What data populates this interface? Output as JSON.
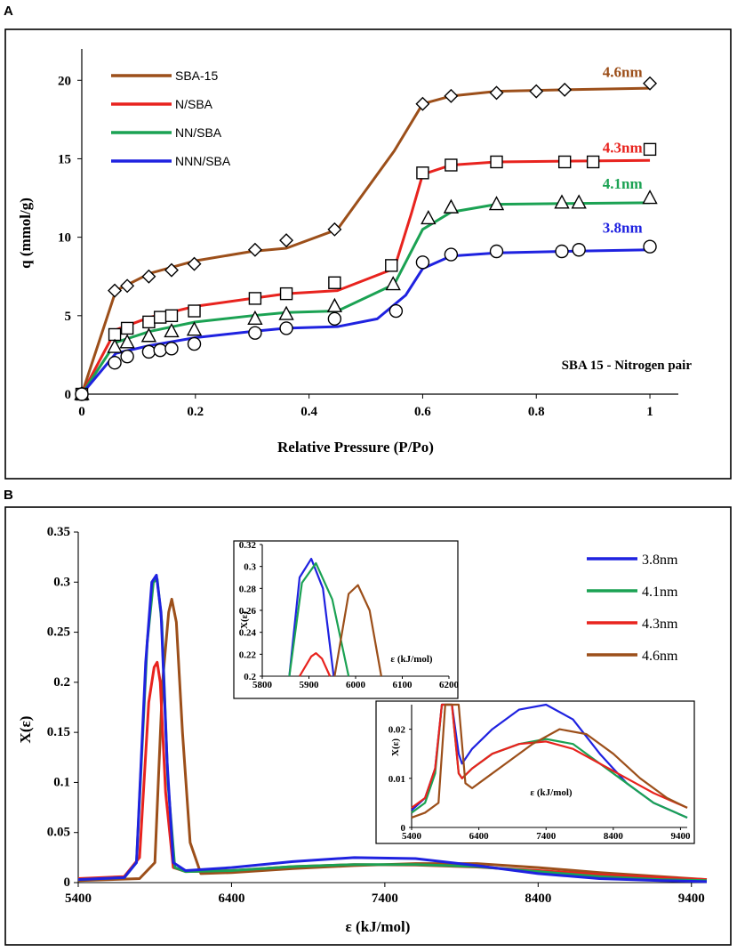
{
  "chart_data": [
    {
      "panel": "A",
      "type": "line",
      "title": "",
      "xlabel": "Relative Pressure (P/Po)",
      "ylabel": "q (mmol/g)",
      "xlim": [
        0,
        1.05
      ],
      "ylim": [
        0,
        22
      ],
      "xticks": [
        0,
        0.2,
        0.4,
        0.6,
        0.8,
        1
      ],
      "xtick_labels": [
        "0",
        "0.2",
        "0.4",
        "0.6",
        "0.8",
        "1"
      ],
      "yticks": [
        0,
        5,
        10,
        15,
        20
      ],
      "ytick_labels": [
        "0",
        "5",
        "10",
        "15",
        "20"
      ],
      "annotation": "SBA 15 - Nitrogen pair",
      "series": [
        {
          "name": "SBA-15",
          "label": "4.6nm",
          "label_x": 0.99,
          "label_y": 20.2,
          "color": "#9C4F1A",
          "marker": "diamond",
          "line": {
            "x": [
              0,
              0.06,
              0.12,
              0.2,
              0.3,
              0.36,
              0.45,
              0.55,
              0.6,
              0.65,
              0.73,
              0.85,
              1.0
            ],
            "y": [
              0,
              6.6,
              7.7,
              8.5,
              9.1,
              9.3,
              10.5,
              15.5,
              18.5,
              19.0,
              19.3,
              19.4,
              19.5
            ]
          },
          "points": {
            "x": [
              0,
              0.058,
              0.08,
              0.118,
              0.158,
              0.198,
              0.305,
              0.36,
              0.445,
              0.6,
              0.65,
              0.73,
              0.8,
              0.85,
              1.0
            ],
            "y": [
              0,
              6.6,
              6.9,
              7.5,
              7.9,
              8.3,
              9.2,
              9.8,
              10.5,
              18.5,
              19.0,
              19.2,
              19.3,
              19.4,
              19.8
            ]
          }
        },
        {
          "name": "N/SBA",
          "label": "4.3nm",
          "label_x": 0.99,
          "label_y": 15.4,
          "color": "#E8231E",
          "marker": "square",
          "line": {
            "x": [
              0,
              0.06,
              0.12,
              0.2,
              0.3,
              0.36,
              0.45,
              0.55,
              0.58,
              0.6,
              0.65,
              0.73,
              0.85,
              1.0
            ],
            "y": [
              0,
              4.1,
              4.9,
              5.6,
              6.1,
              6.4,
              6.6,
              8.0,
              11.5,
              14.0,
              14.6,
              14.8,
              14.85,
              14.9
            ]
          },
          "points": {
            "x": [
              0,
              0.058,
              0.08,
              0.118,
              0.138,
              0.158,
              0.198,
              0.305,
              0.36,
              0.445,
              0.545,
              0.6,
              0.65,
              0.73,
              0.85,
              0.9,
              1.0
            ],
            "y": [
              0,
              3.8,
              4.2,
              4.6,
              4.9,
              5.0,
              5.3,
              6.1,
              6.4,
              7.1,
              8.2,
              14.1,
              14.6,
              14.8,
              14.8,
              14.8,
              15.6
            ]
          }
        },
        {
          "name": "NN/SBA",
          "label": "4.1nm",
          "label_x": 0.99,
          "label_y": 13.1,
          "color": "#1BA253",
          "marker": "triangle",
          "line": {
            "x": [
              0,
              0.06,
              0.12,
              0.2,
              0.3,
              0.36,
              0.45,
              0.55,
              0.6,
              0.65,
              0.73,
              0.85,
              1.0
            ],
            "y": [
              0,
              3.3,
              4.0,
              4.6,
              5.0,
              5.2,
              5.3,
              7.0,
              10.5,
              11.6,
              12.1,
              12.15,
              12.2
            ]
          },
          "points": {
            "x": [
              0,
              0.058,
              0.08,
              0.118,
              0.158,
              0.198,
              0.305,
              0.36,
              0.445,
              0.548,
              0.61,
              0.65,
              0.73,
              0.845,
              0.875,
              1.0
            ],
            "y": [
              0,
              3.0,
              3.3,
              3.7,
              4.0,
              4.1,
              4.8,
              5.1,
              5.6,
              7.0,
              11.2,
              11.9,
              12.1,
              12.2,
              12.2,
              12.5
            ]
          }
        },
        {
          "name": "NNN/SBA",
          "label": "3.8nm",
          "label_x": 0.99,
          "label_y": 10.3,
          "color": "#1F22E0",
          "marker": "circle",
          "line": {
            "x": [
              0,
              0.06,
              0.12,
              0.2,
              0.3,
              0.36,
              0.45,
              0.52,
              0.57,
              0.6,
              0.65,
              0.73,
              0.85,
              1.0
            ],
            "y": [
              0,
              2.6,
              3.1,
              3.6,
              4.0,
              4.2,
              4.3,
              4.8,
              6.3,
              8.0,
              8.8,
              9.0,
              9.1,
              9.2
            ]
          },
          "points": {
            "x": [
              0,
              0.058,
              0.08,
              0.118,
              0.138,
              0.158,
              0.198,
              0.305,
              0.36,
              0.445,
              0.553,
              0.6,
              0.65,
              0.73,
              0.845,
              0.875,
              1.0
            ],
            "y": [
              0,
              2.0,
              2.4,
              2.7,
              2.8,
              2.9,
              3.2,
              3.9,
              4.2,
              4.8,
              5.3,
              8.4,
              8.9,
              9.1,
              9.1,
              9.2,
              9.4
            ]
          }
        }
      ]
    },
    {
      "panel": "B",
      "type": "line",
      "title": "",
      "xlabel": "ε (kJ/mol)",
      "ylabel": "X(ε)",
      "xlim": [
        5400,
        9500
      ],
      "ylim": [
        0,
        0.35
      ],
      "xticks": [
        5400,
        6400,
        7400,
        8400,
        9400
      ],
      "xtick_labels": [
        "5400",
        "6400",
        "7400",
        "8400",
        "9400"
      ],
      "yticks": [
        0,
        0.05,
        0.1,
        0.15,
        0.2,
        0.25,
        0.3,
        0.35
      ],
      "ytick_labels": [
        "0",
        "0.05",
        "0.1",
        "0.15",
        "0.2",
        "0.25",
        "0.3",
        "0.35"
      ],
      "legend_position": "top-right",
      "series": [
        {
          "name": "3.8nm",
          "color": "#1F22E0",
          "x": [
            5400,
            5700,
            5780,
            5840,
            5880,
            5910,
            5940,
            5980,
            6020,
            6100,
            6400,
            6800,
            7200,
            7600,
            8000,
            8400,
            8800,
            9200,
            9500
          ],
          "y": [
            0.003,
            0.005,
            0.02,
            0.22,
            0.3,
            0.307,
            0.27,
            0.12,
            0.02,
            0.012,
            0.015,
            0.021,
            0.025,
            0.024,
            0.017,
            0.009,
            0.004,
            0.002,
            0.001
          ]
        },
        {
          "name": "4.1nm",
          "color": "#1BA253",
          "x": [
            5400,
            5700,
            5780,
            5850,
            5890,
            5915,
            5945,
            5985,
            6030,
            6100,
            6400,
            6800,
            7200,
            7600,
            8000,
            8400,
            8800,
            9200,
            9500
          ],
          "y": [
            0.003,
            0.005,
            0.02,
            0.24,
            0.3,
            0.303,
            0.26,
            0.1,
            0.015,
            0.011,
            0.012,
            0.016,
            0.018,
            0.018,
            0.016,
            0.011,
            0.006,
            0.003,
            0.002
          ]
        },
        {
          "name": "4.3nm",
          "color": "#E8231E",
          "x": [
            5400,
            5700,
            5800,
            5860,
            5895,
            5915,
            5935,
            5970,
            6020,
            6100,
            6400,
            6800,
            7200,
            7600,
            8000,
            8400,
            8800,
            9200,
            9500
          ],
          "y": [
            0.004,
            0.006,
            0.025,
            0.18,
            0.215,
            0.22,
            0.2,
            0.09,
            0.015,
            0.011,
            0.012,
            0.016,
            0.018,
            0.0175,
            0.0155,
            0.012,
            0.008,
            0.005,
            0.003
          ]
        },
        {
          "name": "4.6nm",
          "color": "#9C4F1A",
          "x": [
            5400,
            5800,
            5900,
            5950,
            5990,
            6010,
            6040,
            6080,
            6130,
            6200,
            6400,
            6800,
            7200,
            7600,
            8000,
            8400,
            8800,
            9200,
            9500
          ],
          "y": [
            0.002,
            0.004,
            0.02,
            0.2,
            0.27,
            0.283,
            0.26,
            0.15,
            0.04,
            0.009,
            0.01,
            0.014,
            0.017,
            0.019,
            0.019,
            0.015,
            0.01,
            0.006,
            0.003
          ]
        }
      ],
      "inset_top": {
        "xlabel": "ε (kJ/mol)",
        "ylabel": "X(ε)",
        "xlim": [
          5800,
          6200
        ],
        "ylim": [
          0.2,
          0.32
        ],
        "xticks": [
          5800,
          5900,
          6000,
          6100,
          6200
        ],
        "xtick_labels": [
          "5800",
          "5900",
          "6000",
          "6100",
          "6200"
        ],
        "yticks": [
          0.2,
          0.22,
          0.24,
          0.26,
          0.28,
          0.3,
          0.32
        ],
        "ytick_labels": [
          "0.2",
          "0.22",
          "0.24",
          "0.26",
          "0.28",
          "0.3",
          "0.32"
        ],
        "series": [
          {
            "name": "3.8nm",
            "color": "#1F22E0",
            "x": [
              5858,
              5880,
              5905,
              5930,
              5953
            ],
            "y": [
              0.2,
              0.29,
              0.307,
              0.28,
              0.2
            ]
          },
          {
            "name": "4.1nm",
            "color": "#1BA253",
            "x": [
              5858,
              5885,
              5915,
              5950,
              5985
            ],
            "y": [
              0.2,
              0.285,
              0.303,
              0.27,
              0.2
            ]
          },
          {
            "name": "4.3nm",
            "color": "#E8231E",
            "x": [
              5880,
              5905,
              5915,
              5928,
              5945
            ],
            "y": [
              0.2,
              0.218,
              0.221,
              0.216,
              0.2
            ]
          },
          {
            "name": "4.6nm",
            "color": "#9C4F1A",
            "x": [
              5955,
              5985,
              6005,
              6030,
              6055
            ],
            "y": [
              0.2,
              0.275,
              0.283,
              0.26,
              0.2
            ]
          }
        ]
      },
      "inset_bottom": {
        "xlabel": "ε (kJ/mol)",
        "ylabel": "X(ε)",
        "xlim": [
          5400,
          9500
        ],
        "ylim": [
          0,
          0.025
        ],
        "xticks": [
          5400,
          6400,
          7400,
          8400,
          9400
        ],
        "xtick_labels": [
          "5400",
          "6400",
          "7400",
          "8400",
          "9400"
        ],
        "yticks": [
          0,
          0.01,
          0.02
        ],
        "ytick_labels": [
          "0",
          "0.01",
          "0.02"
        ],
        "series": [
          {
            "name": "3.8nm",
            "color": "#1F22E0",
            "x": [
              5400,
              5600,
              5750,
              5850,
              5880,
              5950,
              6000,
              6100,
              6150,
              6300,
              6600,
              7000,
              7400,
              7800,
              8200,
              8600,
              9000,
              9500
            ],
            "y": [
              0.0035,
              0.006,
              0.012,
              0.025,
              0.025,
              0.025,
              0.025,
              0.015,
              0.013,
              0.016,
              0.02,
              0.024,
              0.025,
              0.022,
              0.015,
              0.009,
              0.005,
              0.002
            ]
          },
          {
            "name": "4.1nm",
            "color": "#1BA253",
            "x": [
              5400,
              5600,
              5750,
              5850,
              5880,
              5950,
              6000,
              6100,
              6150,
              6300,
              6600,
              7000,
              7400,
              7800,
              8200,
              8600,
              9000,
              9500
            ],
            "y": [
              0.003,
              0.005,
              0.011,
              0.025,
              0.025,
              0.025,
              0.025,
              0.011,
              0.01,
              0.012,
              0.015,
              0.017,
              0.018,
              0.017,
              0.013,
              0.009,
              0.005,
              0.002
            ]
          },
          {
            "name": "4.3nm",
            "color": "#E8231E",
            "x": [
              5400,
              5600,
              5750,
              5850,
              5880,
              5950,
              6000,
              6100,
              6150,
              6300,
              6600,
              7000,
              7400,
              7800,
              8200,
              8600,
              9000,
              9500
            ],
            "y": [
              0.004,
              0.006,
              0.012,
              0.025,
              0.025,
              0.025,
              0.025,
              0.011,
              0.01,
              0.012,
              0.015,
              0.017,
              0.0175,
              0.016,
              0.013,
              0.01,
              0.007,
              0.004
            ]
          },
          {
            "name": "4.6nm",
            "color": "#9C4F1A",
            "x": [
              5400,
              5600,
              5800,
              5900,
              5950,
              6050,
              6100,
              6200,
              6300,
              6500,
              6800,
              7200,
              7600,
              8000,
              8400,
              8800,
              9200,
              9500
            ],
            "y": [
              0.002,
              0.003,
              0.005,
              0.025,
              0.025,
              0.025,
              0.025,
              0.009,
              0.008,
              0.01,
              0.013,
              0.017,
              0.02,
              0.019,
              0.015,
              0.01,
              0.006,
              0.004
            ]
          }
        ]
      }
    }
  ]
}
